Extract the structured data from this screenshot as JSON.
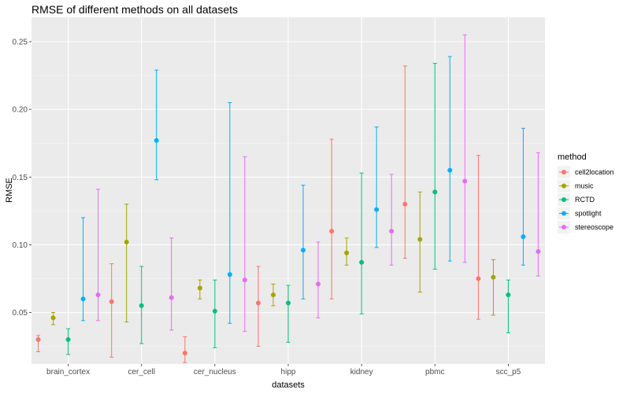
{
  "chart_data": {
    "type": "errorbar",
    "title": "RMSE of different methods on all datasets",
    "xlabel": "datasets",
    "ylabel": "RMSE",
    "ylim": [
      0.012,
      0.268
    ],
    "yticks": [
      "0.05",
      "0.10",
      "0.15",
      "0.20",
      "0.25"
    ],
    "categories": [
      "brain_cortex",
      "cer_cell",
      "cer_nucleus",
      "hipp",
      "kidney",
      "pbmc",
      "scc_p5"
    ],
    "grid": true,
    "legend": {
      "title": "method",
      "position": "right"
    },
    "series": [
      {
        "name": "cell2location",
        "color": "#F8766D",
        "values": [
          0.03,
          0.058,
          0.02,
          0.057,
          0.11,
          0.13,
          0.075
        ],
        "lower": [
          0.021,
          0.017,
          0.013,
          0.025,
          0.06,
          0.09,
          0.045
        ],
        "upper": [
          0.033,
          0.086,
          0.032,
          0.084,
          0.178,
          0.232,
          0.166
        ]
      },
      {
        "name": "music",
        "color": "#A3A500",
        "values": [
          0.046,
          0.102,
          0.068,
          0.063,
          0.094,
          0.104,
          0.076
        ],
        "lower": [
          0.041,
          0.043,
          0.06,
          0.055,
          0.085,
          0.065,
          0.048
        ],
        "upper": [
          0.05,
          0.13,
          0.074,
          0.071,
          0.105,
          0.139,
          0.089
        ]
      },
      {
        "name": "RCTD",
        "color": "#00BF7D",
        "values": [
          0.03,
          0.055,
          0.051,
          0.057,
          0.087,
          0.139,
          0.063
        ],
        "lower": [
          0.019,
          0.027,
          0.024,
          0.028,
          0.049,
          0.082,
          0.035
        ],
        "upper": [
          0.038,
          0.084,
          0.074,
          0.07,
          0.153,
          0.234,
          0.074
        ]
      },
      {
        "name": "spotlight",
        "color": "#00B0F6",
        "values": [
          0.06,
          0.177,
          0.078,
          0.096,
          0.126,
          0.155,
          0.106
        ],
        "lower": [
          0.044,
          0.148,
          0.042,
          0.06,
          0.098,
          0.088,
          0.085
        ],
        "upper": [
          0.12,
          0.229,
          0.205,
          0.144,
          0.187,
          0.239,
          0.186
        ]
      },
      {
        "name": "stereoscope",
        "color": "#E76BF3",
        "values": [
          0.063,
          0.061,
          0.074,
          0.071,
          0.11,
          0.147,
          0.095
        ],
        "lower": [
          0.044,
          0.037,
          0.036,
          0.046,
          0.085,
          0.087,
          0.077
        ],
        "upper": [
          0.141,
          0.105,
          0.165,
          0.102,
          0.152,
          0.255,
          0.168
        ]
      }
    ]
  }
}
